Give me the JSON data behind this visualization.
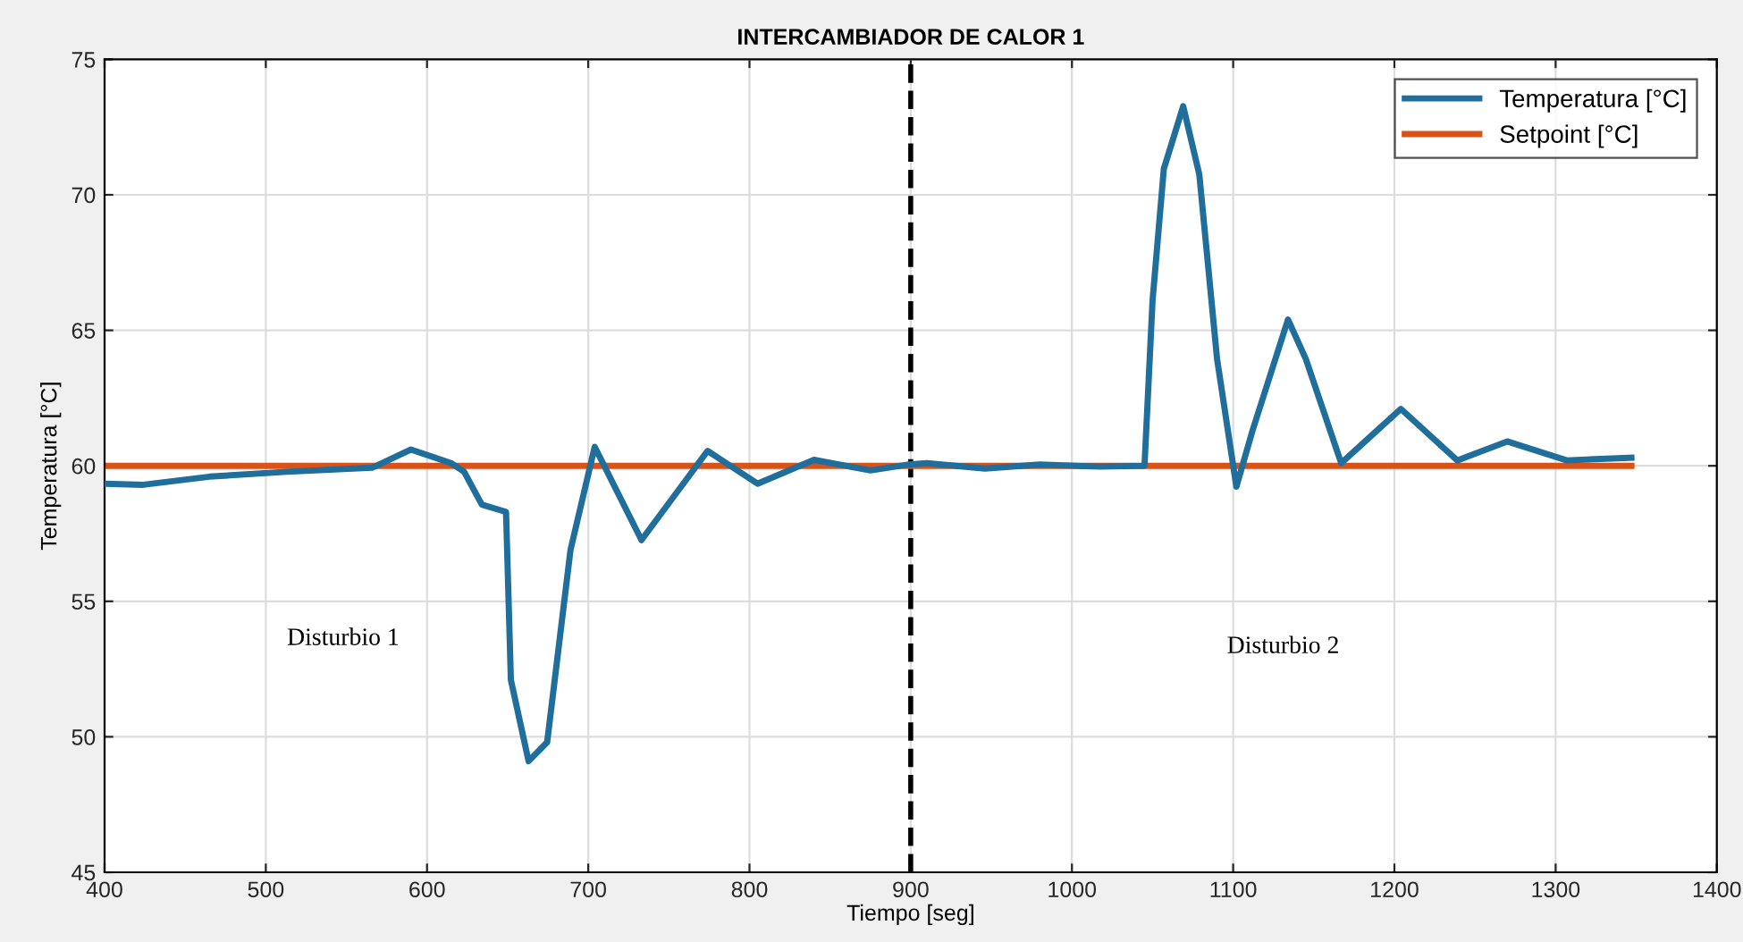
{
  "chart_data": {
    "type": "line",
    "title": "INTERCAMBIADOR DE CALOR 1",
    "xlabel": "Tiempo [seg]",
    "ylabel": "Temperatura [°C]",
    "xlim": [
      400,
      1400
    ],
    "xticks": [
      400,
      500,
      600,
      700,
      800,
      900,
      1000,
      1100,
      1200,
      1300,
      1400
    ],
    "ylim": [
      45,
      75
    ],
    "yticks": [
      45,
      50,
      55,
      60,
      65,
      70,
      75
    ],
    "grid": true,
    "legend": "top right",
    "line_style": "solid",
    "marker": "none",
    "series": [
      {
        "name": "Temperatura [°C]",
        "color": "#1f6e9c",
        "x": [
          400,
          424,
          465,
          513,
          566,
          590,
          615,
          623,
          634,
          649,
          652,
          663,
          674.5,
          689,
          704,
          733,
          774,
          805,
          840,
          875,
          899,
          910,
          946,
          980,
          1017,
          1045,
          1050,
          1057,
          1069,
          1079,
          1090,
          1102,
          1112,
          1134,
          1145,
          1167,
          1204,
          1239,
          1270,
          1307,
          1347
        ],
        "values": [
          59.34,
          59.3,
          59.6,
          59.78,
          59.93,
          60.6,
          60.1,
          59.78,
          58.57,
          58.3,
          52.1,
          49.1,
          49.8,
          56.9,
          60.7,
          57.26,
          60.55,
          59.34,
          60.22,
          59.83,
          60.05,
          60.1,
          59.9,
          60.05,
          59.97,
          60.0,
          66.1,
          70.96,
          73.27,
          70.75,
          63.95,
          59.23,
          61.3,
          65.4,
          63.95,
          60.1,
          62.1,
          60.2,
          60.9,
          60.2,
          60.3
        ]
      },
      {
        "name": "Setpoint [°C]",
        "color": "#d95319",
        "x": [
          400,
          1347
        ],
        "values": [
          60,
          60
        ]
      }
    ],
    "ref_lines": [
      {
        "axis": "x",
        "value": 900,
        "color": "#000000",
        "line_style": "dashed"
      }
    ],
    "annotations": [
      "Disturbio 1",
      "Disturbio 2"
    ]
  }
}
